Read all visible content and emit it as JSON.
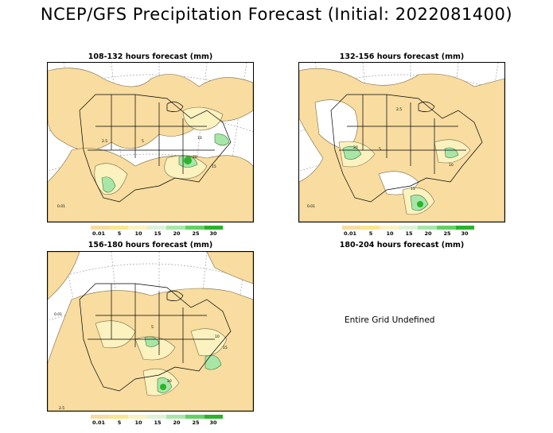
{
  "title": "NCEP/GFS Precipitation Forecast (Initial: 2022081400)",
  "panels": [
    {
      "title": "108-132 hours forecast (mm)"
    },
    {
      "title": "132-156 hours forecast (mm)"
    },
    {
      "title": "156-180 hours forecast (mm)"
    },
    {
      "title": "180-204 hours forecast (mm)",
      "message": "Entire Grid Undefined"
    }
  ],
  "legend": {
    "labels": [
      "0.01",
      "5",
      "10",
      "15",
      "20",
      "25",
      "30"
    ],
    "colors": [
      "#f8dca0",
      "#fae68c",
      "#fbf2c0",
      "#dff2d8",
      "#a8e6a8",
      "#62d262",
      "#2ab42a"
    ]
  },
  "contour_labels": {
    "p1": [
      "0.01",
      "2.5",
      "5",
      "10",
      "15",
      "20"
    ],
    "p2": [
      "0.01",
      "2.5",
      "5",
      "10",
      "15",
      "20"
    ],
    "p3": [
      "0.01",
      "2.5",
      "5",
      "10",
      "15",
      "20"
    ]
  }
}
